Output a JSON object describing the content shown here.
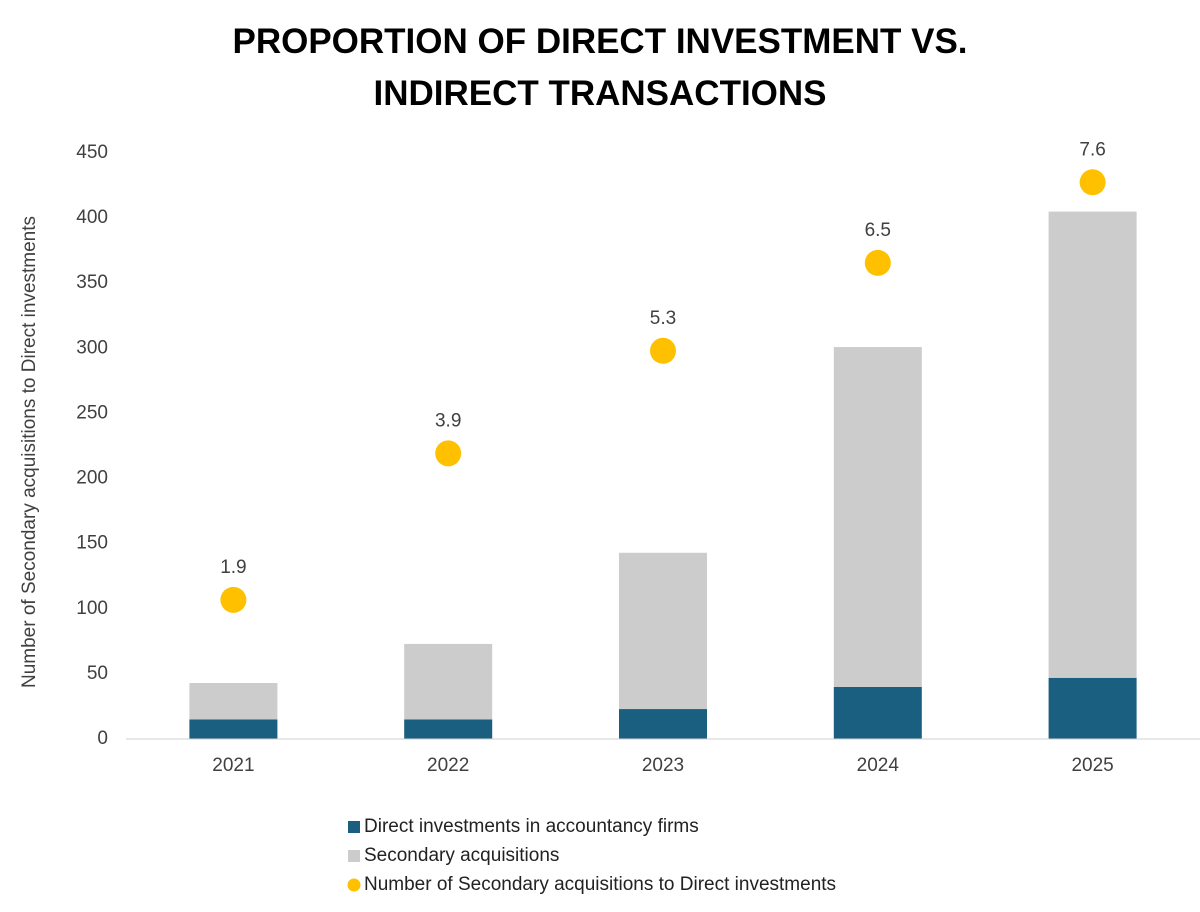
{
  "chart_data": {
    "type": "bar",
    "stacked": true,
    "title": "PROPORTION OF DIRECT INVESTMENT VS. INDIRECT TRANSACTIONS",
    "y_label": "Number of Secondary acquisitions to Direct investments",
    "categories": [
      "2021",
      "2022",
      "2023",
      "2024",
      "2025"
    ],
    "series": [
      {
        "name": "Direct investments in accountancy firms",
        "color": "#1a5e80",
        "values": [
          15,
          15,
          23,
          40,
          47
        ]
      },
      {
        "name": "Secondary acquisitions",
        "color": "#cccccc",
        "values": [
          28,
          58,
          120,
          261,
          358
        ]
      },
      {
        "name": "Number of Secondary acquisitions to Direct investments",
        "color": "#ffc000",
        "type": "scatter",
        "axis": "y2",
        "values": [
          1.9,
          3.9,
          5.3,
          6.5,
          7.6
        ]
      }
    ],
    "ylim": [
      0,
      450
    ],
    "yticks": [
      0,
      50,
      100,
      150,
      200,
      250,
      300,
      350,
      400,
      450
    ],
    "y2lim": [
      0,
      8
    ],
    "grid": false,
    "legend": "bottom"
  }
}
